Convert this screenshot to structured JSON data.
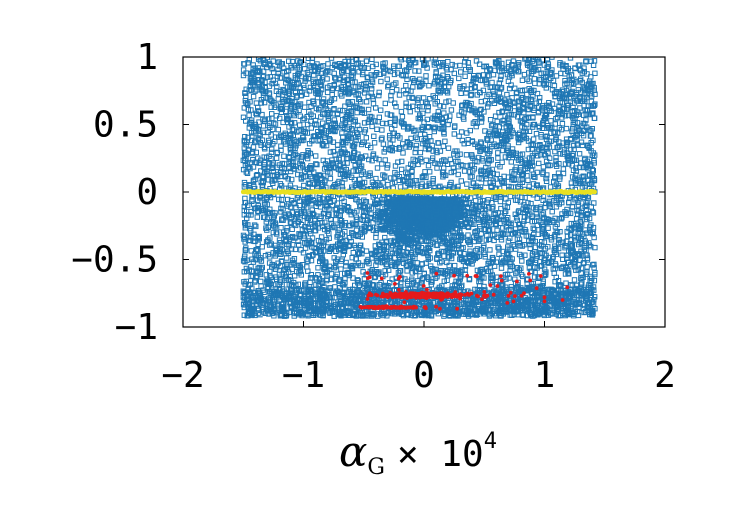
{
  "chart_data": {
    "type": "scatter",
    "xlabel": {
      "symbol": "α",
      "subscript": "G",
      "suffix": "× 10",
      "exponent": "4"
    },
    "ylabel": "",
    "xlim": [
      -2,
      2
    ],
    "ylim": [
      -1,
      1
    ],
    "x_ticks": [
      {
        "value": -2,
        "label": "−2"
      },
      {
        "value": -1,
        "label": "−1"
      },
      {
        "value": 0,
        "label": "0"
      },
      {
        "value": 1,
        "label": "1"
      },
      {
        "value": 2,
        "label": "2"
      }
    ],
    "y_ticks": [
      {
        "value": 1,
        "label": "1"
      },
      {
        "value": 0.5,
        "label": "0.5"
      },
      {
        "value": 0,
        "label": "0"
      },
      {
        "value": -0.5,
        "label": "−0.5"
      },
      {
        "value": -1,
        "label": "−1"
      }
    ],
    "grid": false,
    "legend": "none",
    "series": [
      {
        "color": "#1f77b4",
        "marker": "open-square",
        "x_range": [
          -1.5,
          1.42
        ],
        "y_range": [
          -0.92,
          1.0
        ],
        "points": [
          [
            -1.45,
            0.98
          ],
          [
            -1.3,
            0.85
          ],
          [
            -1.1,
            0.92
          ],
          [
            -0.9,
            0.75
          ],
          [
            -0.7,
            0.95
          ],
          [
            -0.5,
            0.8
          ],
          [
            -0.3,
            0.9
          ],
          [
            -0.1,
            0.7
          ],
          [
            0.1,
            0.88
          ],
          [
            0.3,
            0.78
          ],
          [
            0.5,
            0.93
          ],
          [
            0.7,
            0.82
          ],
          [
            0.9,
            0.97
          ],
          [
            1.1,
            0.86
          ],
          [
            1.3,
            0.9
          ],
          [
            -1.4,
            0.5
          ],
          [
            -1.0,
            0.45
          ],
          [
            -0.6,
            0.55
          ],
          [
            -0.2,
            0.4
          ],
          [
            0.2,
            0.5
          ],
          [
            0.6,
            0.42
          ],
          [
            1.0,
            0.55
          ],
          [
            1.35,
            0.48
          ],
          [
            -1.2,
            0.2
          ],
          [
            -0.8,
            0.15
          ],
          [
            -0.4,
            0.25
          ],
          [
            0.0,
            0.12
          ],
          [
            0.4,
            0.2
          ],
          [
            0.8,
            0.18
          ],
          [
            1.2,
            0.24
          ],
          [
            -1.3,
            -0.2
          ],
          [
            -0.9,
            -0.25
          ],
          [
            -0.5,
            -0.15
          ],
          [
            -0.1,
            -0.3
          ],
          [
            0.1,
            -0.2
          ],
          [
            0.5,
            -0.28
          ],
          [
            0.9,
            -0.18
          ],
          [
            1.3,
            -0.22
          ],
          [
            -1.4,
            -0.5
          ],
          [
            -1.0,
            -0.45
          ],
          [
            -0.6,
            -0.55
          ],
          [
            -0.2,
            -0.5
          ],
          [
            0.2,
            -0.48
          ],
          [
            0.6,
            -0.52
          ],
          [
            1.0,
            -0.46
          ],
          [
            1.4,
            -0.54
          ],
          [
            -1.2,
            -0.8
          ],
          [
            -0.8,
            -0.85
          ],
          [
            -0.4,
            -0.75
          ],
          [
            0.0,
            -0.9
          ],
          [
            0.4,
            -0.82
          ],
          [
            0.8,
            -0.88
          ],
          [
            1.2,
            -0.78
          ]
        ]
      },
      {
        "color": "#e8e020",
        "marker": "filled-point",
        "x_range": [
          -1.5,
          1.42
        ],
        "points": [
          [
            -1.5,
            0.0
          ],
          [
            -0.75,
            0.0
          ],
          [
            0.0,
            0.0
          ],
          [
            0.75,
            0.0
          ],
          [
            1.42,
            0.0
          ]
        ]
      },
      {
        "color": "#e41a1c",
        "marker": "filled-point",
        "x_range": [
          -0.55,
          1.2
        ],
        "y_range": [
          -0.88,
          -0.6
        ],
        "points": [
          [
            -0.45,
            -0.75
          ],
          [
            -0.3,
            -0.78
          ],
          [
            -0.15,
            -0.74
          ],
          [
            0.0,
            -0.77
          ],
          [
            0.15,
            -0.76
          ],
          [
            0.3,
            -0.79
          ],
          [
            0.5,
            -0.74
          ],
          [
            0.7,
            -0.77
          ],
          [
            1.0,
            -0.78
          ],
          [
            -0.2,
            -0.86
          ],
          [
            0.1,
            -0.85
          ],
          [
            -0.35,
            -0.64
          ],
          [
            0.25,
            -0.62
          ],
          [
            0.55,
            -0.69
          ],
          [
            1.15,
            -0.8
          ]
        ]
      }
    ]
  }
}
